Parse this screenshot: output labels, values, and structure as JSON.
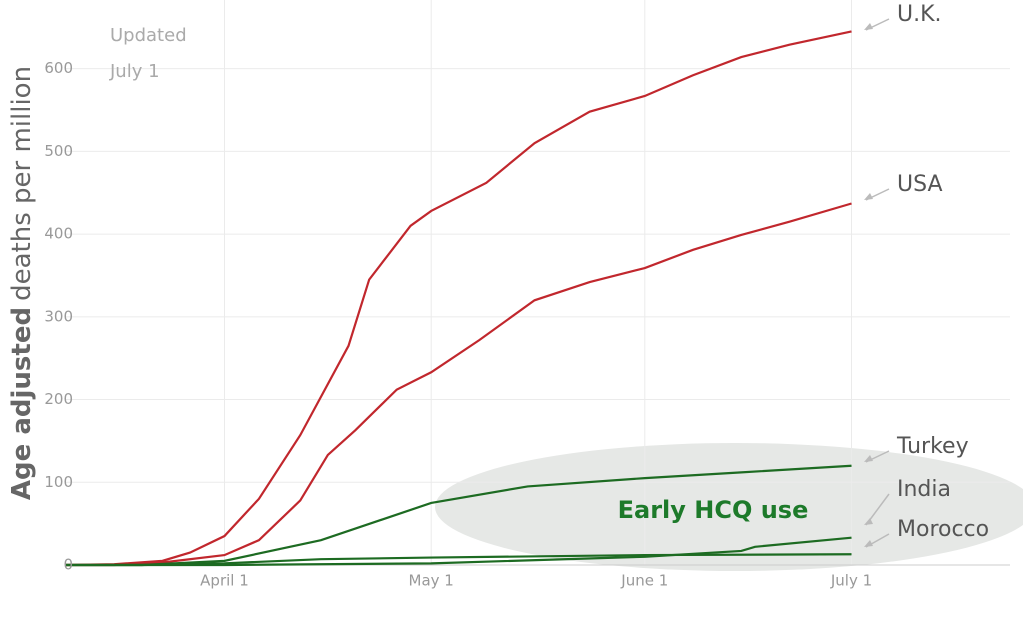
{
  "chart_data": {
    "type": "line",
    "annotation": [
      "Updated",
      "July 1"
    ],
    "highlight_label": "Early HCQ use",
    "ylabel": {
      "bold": "Age adjusted",
      "rest": "deaths per million"
    },
    "xlim": [
      "March 9",
      "July 24"
    ],
    "xticks": [
      "April 1",
      "May 1",
      "June 1",
      "July 1"
    ],
    "ylim": [
      0,
      683
    ],
    "yticks": [
      0,
      100,
      200,
      300,
      400,
      500,
      600
    ],
    "grid": true,
    "series": [
      {
        "name": "U.K.",
        "color": "#c1272d",
        "x": [
          "March 9",
          "March 16",
          "March 23",
          "March 27",
          "April 1",
          "April 6",
          "April 12",
          "April 19",
          "April 22",
          "April 28",
          "May 1",
          "May 9",
          "May 16",
          "May 24",
          "June 1",
          "June 8",
          "June 15",
          "June 22",
          "July 1"
        ],
        "values": [
          0,
          1,
          5,
          15,
          35,
          80,
          157,
          265,
          345,
          410,
          428,
          462,
          510,
          548,
          567,
          592,
          614,
          629,
          645
        ]
      },
      {
        "name": "USA",
        "color": "#c1272d",
        "x": [
          "March 9",
          "March 16",
          "March 23",
          "April 1",
          "April 6",
          "April 12",
          "April 16",
          "April 20",
          "April 26",
          "May 1",
          "May 8",
          "May 16",
          "May 24",
          "June 1",
          "June 8",
          "June 15",
          "June 22",
          "July 1"
        ],
        "values": [
          0,
          0,
          3,
          12,
          30,
          78,
          133,
          163,
          212,
          233,
          272,
          320,
          342,
          359,
          381,
          399,
          415,
          437
        ]
      },
      {
        "name": "Turkey",
        "color": "#1d6b22",
        "x": [
          "March 9",
          "March 20",
          "April 1",
          "April 15",
          "May 1",
          "May 15",
          "June 1",
          "June 15",
          "July 1"
        ],
        "values": [
          0,
          0,
          5,
          30,
          75,
          95,
          105,
          112,
          120
        ]
      },
      {
        "name": "India",
        "color": "#1d6b22",
        "x": [
          "March 9",
          "April 1",
          "May 1",
          "June 1",
          "June 15",
          "June 17",
          "July 1"
        ],
        "values": [
          0,
          0,
          2,
          10,
          17,
          22,
          33
        ]
      },
      {
        "name": "Morocco",
        "color": "#1d6b22",
        "x": [
          "March 9",
          "March 20",
          "April 1",
          "April 15",
          "May 1",
          "June 1",
          "July 1"
        ],
        "values": [
          0,
          0,
          2,
          7,
          9,
          12,
          13
        ]
      }
    ]
  }
}
